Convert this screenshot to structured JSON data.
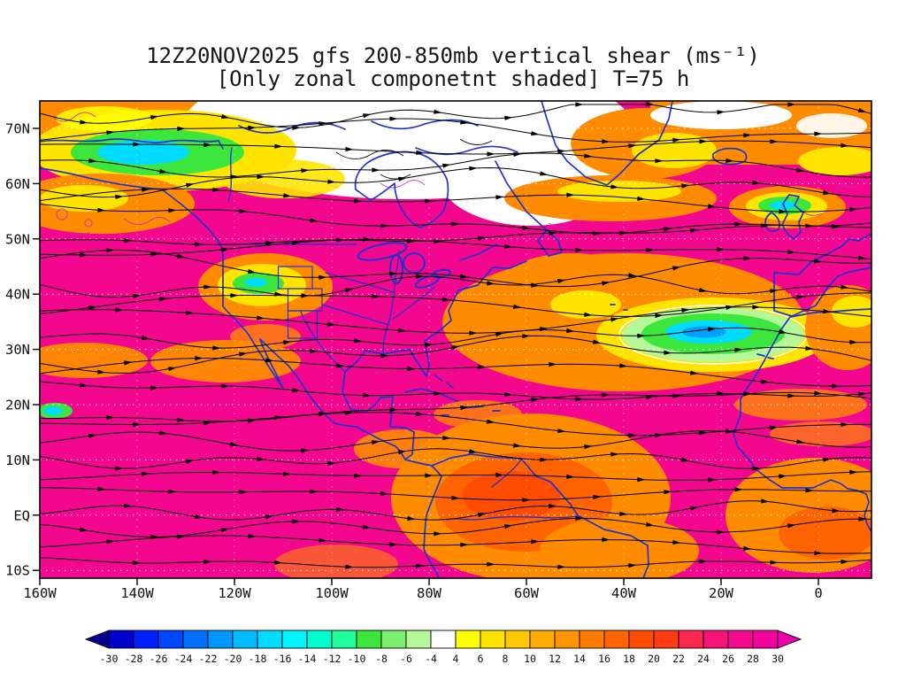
{
  "title": {
    "line1": "12Z20NOV2025 gfs 200-850mb vertical shear (ms⁻¹)",
    "line2": "[Only zonal componetnt shaded] T=75 h"
  },
  "map": {
    "lat_labels": [
      "70N",
      "60N",
      "50N",
      "40N",
      "30N",
      "20N",
      "10N",
      "EQ",
      "10S"
    ],
    "lon_labels": [
      "160W",
      "140W",
      "120W",
      "100W",
      "80W",
      "60W",
      "40W",
      "20W",
      "0"
    ],
    "coastline_color": "#2233CC",
    "streamline_color": "#000000",
    "shading_base_color": "#F3078F"
  },
  "colorbar": {
    "labels": [
      "-30",
      "-28",
      "-26",
      "-24",
      "-22",
      "-20",
      "-18",
      "-16",
      "-14",
      "-12",
      "-10",
      "-8",
      "-6",
      "-4",
      "4",
      "6",
      "8",
      "10",
      "12",
      "14",
      "16",
      "18",
      "20",
      "22",
      "24",
      "26",
      "28",
      "30"
    ],
    "colors": [
      "#00008B",
      "#0000CC",
      "#0020FF",
      "#0048FF",
      "#0070FF",
      "#0098FF",
      "#00BCFF",
      "#00DCFF",
      "#00F4FF",
      "#00FFD0",
      "#20FF9C",
      "#3CE63C",
      "#7CF06E",
      "#B4F89A",
      "#FFFFFF",
      "#FFFF00",
      "#FFE400",
      "#FFC800",
      "#FFAC00",
      "#FF9400",
      "#FF7C00",
      "#FF6400",
      "#FF4C00",
      "#FF3C14",
      "#FB2850",
      "#F61478",
      "#F30A8E",
      "#F2059C",
      "#EE00AC"
    ]
  },
  "chart_data": {
    "type": "heatmap",
    "title": "12Z20NOV2025 gfs 200-850mb vertical shear (ms⁻¹)",
    "subtitle": "[Only zonal componetnt shaded] T=75 h",
    "model": "gfs",
    "run_and_valid_time": "12Z20NOV2025",
    "forecast_hour": "T=75 h",
    "field": "200-850mb vertical wind shear; zonal component shaded; shear-vector streamlines overlaid in black; coastlines in blue",
    "units": "ms⁻¹",
    "legend_position": "bottom",
    "x_axis": {
      "label": "longitude",
      "ticks": [
        "160W",
        "140W",
        "120W",
        "100W",
        "80W",
        "60W",
        "40W",
        "20W",
        "0"
      ],
      "range": [
        "160W",
        "~10E"
      ]
    },
    "y_axis": {
      "label": "latitude",
      "ticks": [
        "10S",
        "EQ",
        "10N",
        "20N",
        "30N",
        "40N",
        "50N",
        "60N",
        "70N"
      ],
      "range": [
        "10S",
        "~75N"
      ]
    },
    "shading_levels": [
      -30,
      -28,
      -26,
      -24,
      -22,
      -20,
      -18,
      -16,
      -14,
      -12,
      -10,
      -8,
      -6,
      -4,
      4,
      6,
      8,
      10,
      12,
      14,
      16,
      18,
      20,
      22,
      24,
      26,
      28,
      30
    ],
    "notable_features": [
      {
        "region": "Bulk of domain, subtropics and tropics 10S-50N",
        "approx_value_ms": 28,
        "note": "magenta shading, strong westerly shear 26 to 30+"
      },
      {
        "region": "Subtropical NE Atlantic near 30N 20W",
        "approx_value_ms": -18,
        "note": "closed cyan/green minimum ringed by pale green, yellow and orange, white zero contour"
      },
      {
        "region": "SW United States near 40N 110W",
        "approx_value_ms": -10,
        "note": "small green/cyan pocket inside yellow-orange ring"
      },
      {
        "region": "Alaska / NW Canada 63-70N 150-120W",
        "approx_value_ms": -14,
        "note": "green band with cyan core inside yellow"
      },
      {
        "region": "Arctic Canada and Hudson Bay 60-75N 110-55W",
        "approx_value_ms": 0,
        "note": "white, weak shear between -4 and +4"
      },
      {
        "region": "Tropical South America 0-10S 70-40W",
        "approx_value_ms": 16,
        "note": "broad orange maximum with 18-22 red-orange core"
      },
      {
        "region": "Near 54N 0-5W",
        "approx_value_ms": -12,
        "note": "small green/cyan pocket"
      },
      {
        "region": "Bottom right, Gulf of Guinea 0-10S 15W-10E",
        "approx_value_ms": 18,
        "note": "orange maximum"
      },
      {
        "region": "North Atlantic 55N 55-25W",
        "approx_value_ms": 12,
        "note": "orange band with yellow fringe south of white arctic area"
      }
    ]
  }
}
